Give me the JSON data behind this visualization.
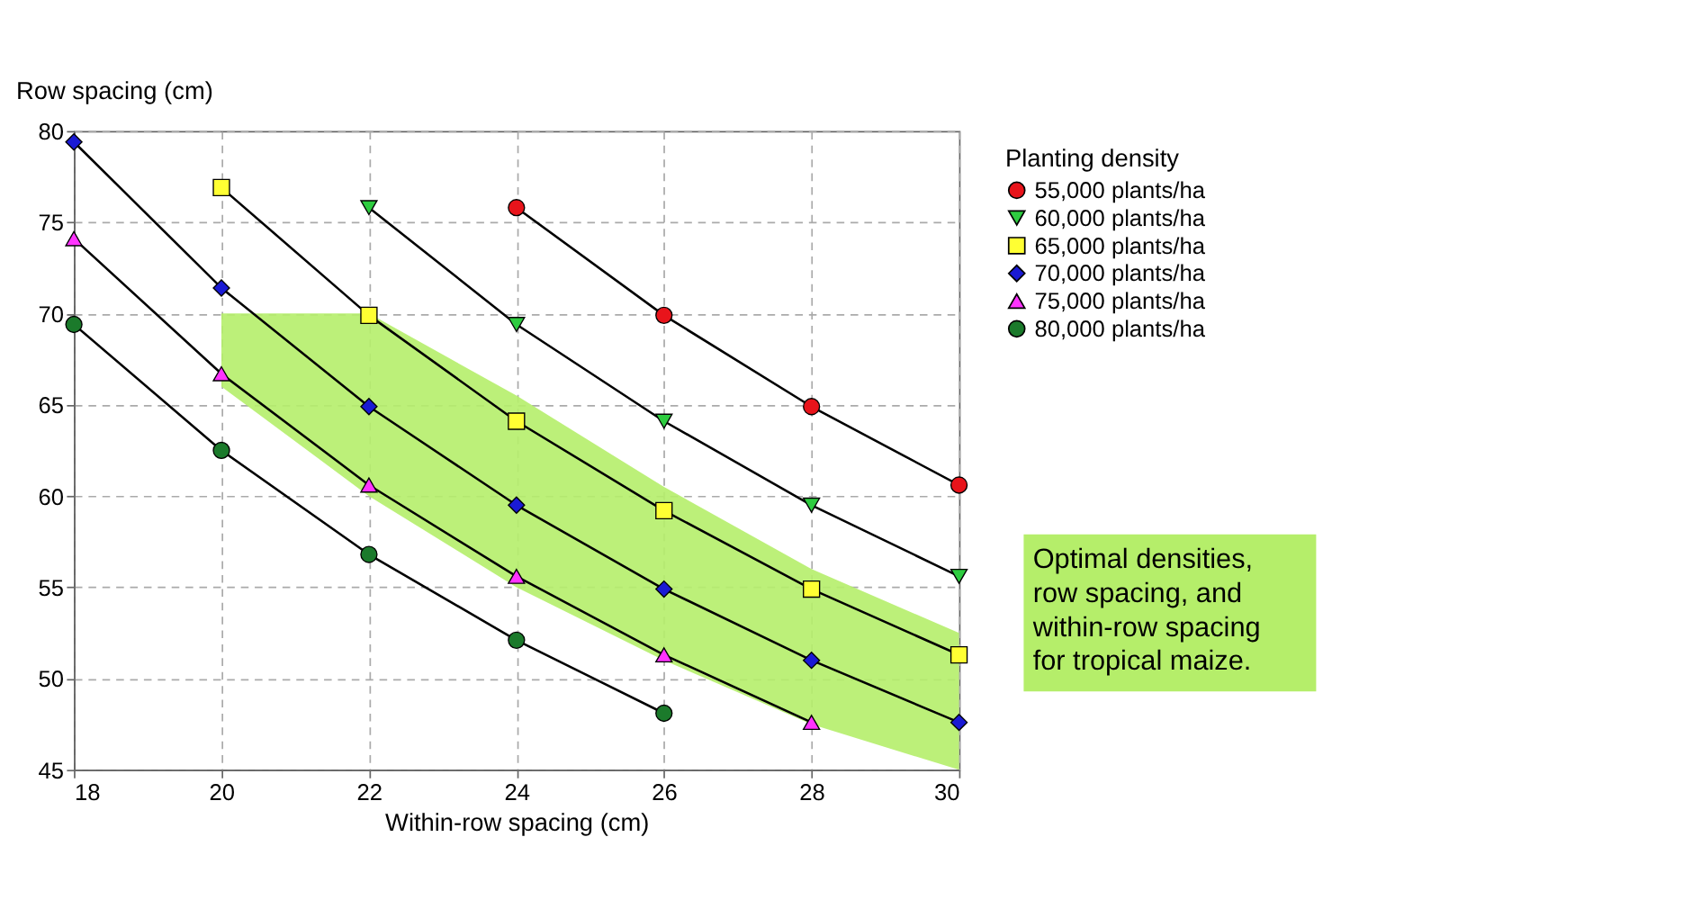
{
  "chart_data": {
    "type": "line",
    "xlabel": "Within-row spacing (cm)",
    "ylabel": "Row spacing (cm)",
    "legend_title": "Planting density",
    "xlim": [
      18,
      30
    ],
    "xticks": [
      18,
      20,
      22,
      24,
      26,
      28,
      30
    ],
    "ylim": [
      45,
      80
    ],
    "yticks": [
      45,
      50,
      55,
      60,
      65,
      70,
      75,
      80
    ],
    "grid": true,
    "legend": "top right",
    "series": [
      {
        "name": "55,000 plants/ha",
        "color": "#e8141b",
        "marker": "circle",
        "x": [
          24,
          26,
          28,
          30
        ],
        "values": [
          75.8,
          69.9,
          64.9,
          60.6
        ]
      },
      {
        "name": "60,000 plants/ha",
        "color": "#2ecc40",
        "marker": "triangle-down",
        "x": [
          22,
          24,
          26,
          28,
          30
        ],
        "values": [
          75.8,
          69.4,
          64.1,
          59.5,
          55.6
        ]
      },
      {
        "name": "65,000 plants/ha",
        "color": "#ffff33",
        "marker": "square",
        "x": [
          20,
          22,
          24,
          26,
          28,
          30
        ],
        "values": [
          76.9,
          69.9,
          64.1,
          59.2,
          54.9,
          51.3
        ]
      },
      {
        "name": "70,000 plants/ha",
        "color": "#1a1ad4",
        "marker": "diamond",
        "x": [
          18,
          20,
          22,
          24,
          26,
          28,
          30
        ],
        "values": [
          79.4,
          71.4,
          64.9,
          59.5,
          54.9,
          51.0,
          47.6
        ],
        "upper": [
          null,
          70,
          70,
          65.5,
          60.5,
          56,
          52.5
        ],
        "lower": [
          null,
          66,
          60,
          55,
          51,
          47.5,
          45
        ]
      },
      {
        "name": "75,000 plants/ha",
        "color": "#ff33ff",
        "marker": "triangle-up",
        "x": [
          18,
          20,
          22,
          24,
          26,
          28
        ],
        "values": [
          74.1,
          66.7,
          60.6,
          55.6,
          51.3,
          47.6
        ]
      },
      {
        "name": "80,000 plants/ha",
        "color": "#1b7a2b",
        "marker": "circle",
        "x": [
          18,
          20,
          22,
          24,
          26
        ],
        "values": [
          69.4,
          62.5,
          56.8,
          52.1,
          48.1
        ]
      }
    ],
    "annotations": [
      "Optimal densities,\nrow spacing, and\nwithin-row spacing\nfor tropical maize."
    ]
  }
}
